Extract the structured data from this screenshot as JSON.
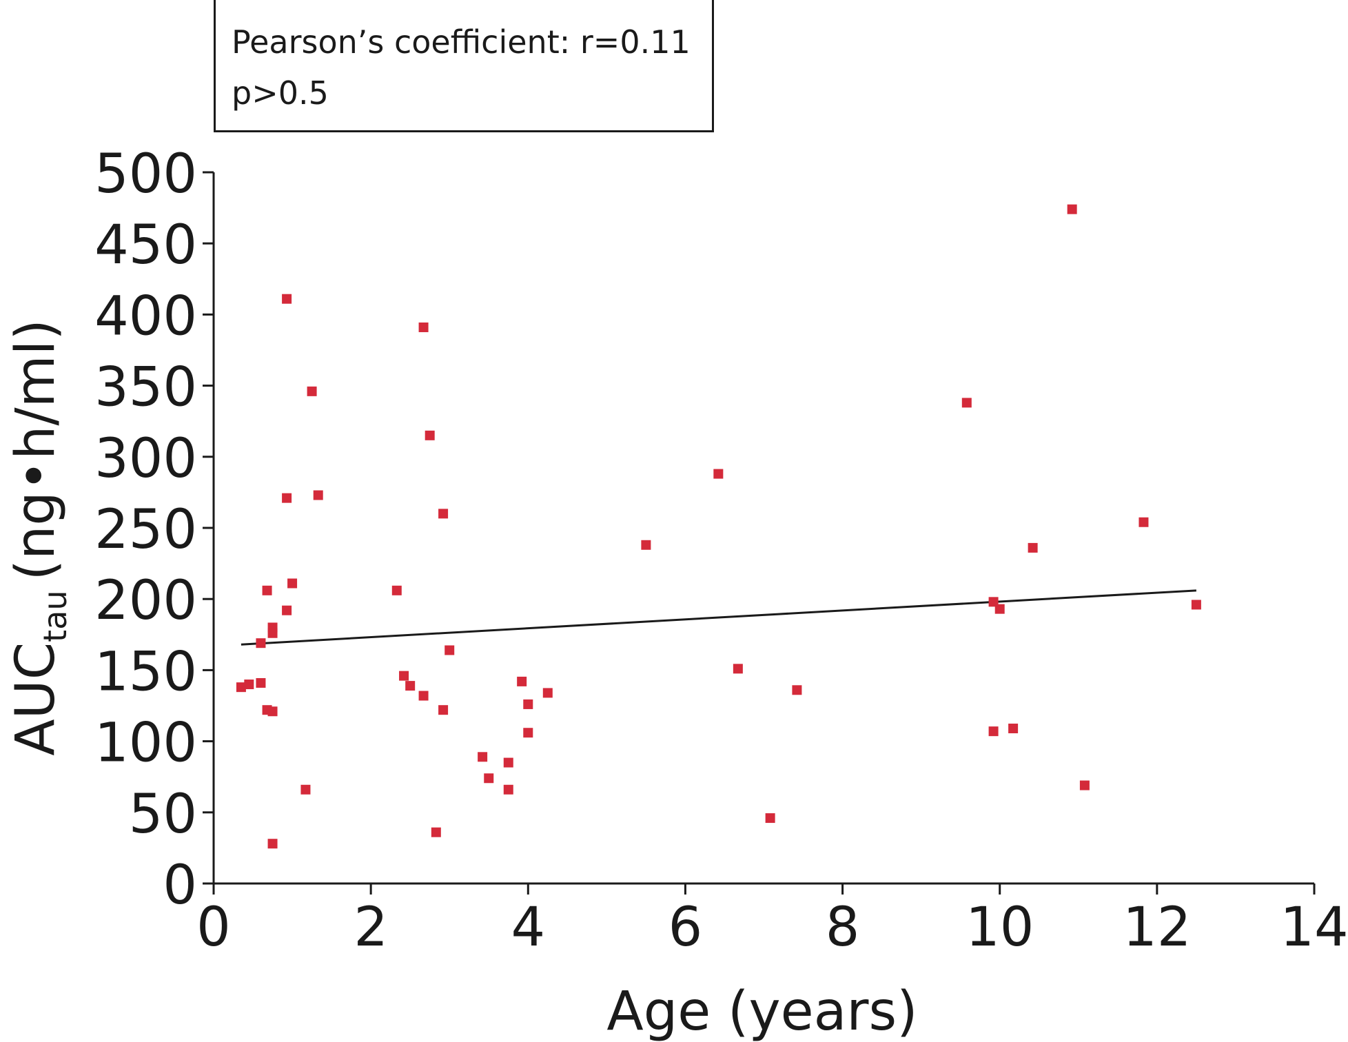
{
  "annotation": {
    "line1": "Pearson’s coefficient: r=0.11",
    "line2": "p>0.5"
  },
  "chart_data": {
    "type": "scatter",
    "xlabel": "Age (years)",
    "ylabel_main": "AUC",
    "ylabel_sub": "tau",
    "ylabel_unit": "(ng•h/ml)",
    "xlim": [
      0,
      14
    ],
    "ylim": [
      0,
      500
    ],
    "xticks": [
      0,
      2,
      4,
      6,
      8,
      10,
      12,
      14
    ],
    "yticks": [
      0,
      50,
      100,
      150,
      200,
      250,
      300,
      350,
      400,
      450,
      500
    ],
    "marker_color": "#d42a3a",
    "trendline": {
      "x": [
        0.35,
        12.5
      ],
      "y": [
        168,
        206
      ]
    },
    "points": [
      {
        "x": 0.35,
        "y": 138
      },
      {
        "x": 0.45,
        "y": 140
      },
      {
        "x": 0.6,
        "y": 141
      },
      {
        "x": 0.6,
        "y": 169
      },
      {
        "x": 0.68,
        "y": 122
      },
      {
        "x": 0.68,
        "y": 206
      },
      {
        "x": 0.75,
        "y": 121
      },
      {
        "x": 0.75,
        "y": 176
      },
      {
        "x": 0.75,
        "y": 180
      },
      {
        "x": 0.75,
        "y": 28
      },
      {
        "x": 0.93,
        "y": 192
      },
      {
        "x": 0.93,
        "y": 271
      },
      {
        "x": 0.93,
        "y": 411
      },
      {
        "x": 1.0,
        "y": 211
      },
      {
        "x": 1.17,
        "y": 66
      },
      {
        "x": 1.25,
        "y": 346
      },
      {
        "x": 1.33,
        "y": 273
      },
      {
        "x": 2.33,
        "y": 206
      },
      {
        "x": 2.42,
        "y": 146
      },
      {
        "x": 2.5,
        "y": 139
      },
      {
        "x": 2.67,
        "y": 132
      },
      {
        "x": 2.67,
        "y": 391
      },
      {
        "x": 2.75,
        "y": 315
      },
      {
        "x": 2.83,
        "y": 36
      },
      {
        "x": 2.92,
        "y": 122
      },
      {
        "x": 2.92,
        "y": 260
      },
      {
        "x": 3.0,
        "y": 164
      },
      {
        "x": 3.42,
        "y": 89
      },
      {
        "x": 3.5,
        "y": 74
      },
      {
        "x": 3.75,
        "y": 66
      },
      {
        "x": 3.75,
        "y": 85
      },
      {
        "x": 3.92,
        "y": 142
      },
      {
        "x": 4.0,
        "y": 106
      },
      {
        "x": 4.0,
        "y": 126
      },
      {
        "x": 4.25,
        "y": 134
      },
      {
        "x": 5.5,
        "y": 238
      },
      {
        "x": 6.42,
        "y": 288
      },
      {
        "x": 6.67,
        "y": 151
      },
      {
        "x": 7.08,
        "y": 46
      },
      {
        "x": 7.42,
        "y": 136
      },
      {
        "x": 9.58,
        "y": 338
      },
      {
        "x": 9.92,
        "y": 198
      },
      {
        "x": 9.92,
        "y": 107
      },
      {
        "x": 10.0,
        "y": 193
      },
      {
        "x": 10.17,
        "y": 109
      },
      {
        "x": 10.42,
        "y": 236
      },
      {
        "x": 10.92,
        "y": 474
      },
      {
        "x": 11.08,
        "y": 69
      },
      {
        "x": 11.83,
        "y": 254
      },
      {
        "x": 12.5,
        "y": 196
      }
    ]
  }
}
